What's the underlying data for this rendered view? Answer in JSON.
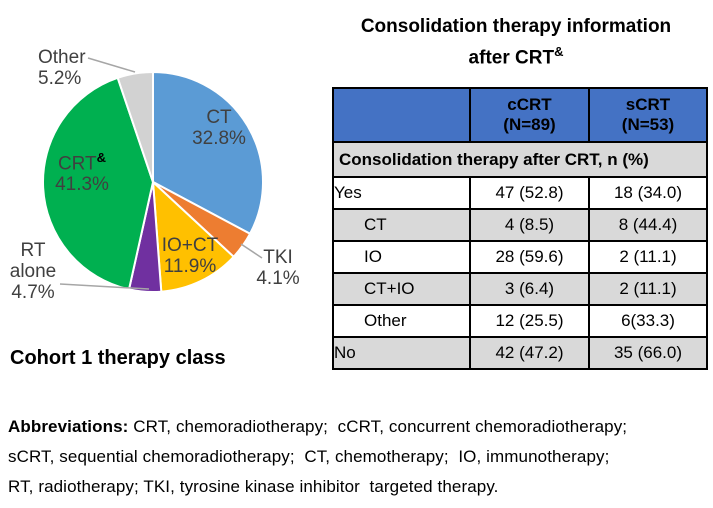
{
  "chart_data": {
    "type": "pie",
    "title": "Cohort 1 therapy class",
    "start_angle_deg": 0,
    "direction": "clockwise",
    "legend_position": "none",
    "label_color": "#404040",
    "segments": [
      {
        "label": "CT",
        "value": 32.8,
        "pct_label": "32.8%",
        "color": "#5B9BD5"
      },
      {
        "label": "TKI",
        "value": 4.1,
        "pct_label": "4.1%",
        "color": "#ED7D31"
      },
      {
        "label": "IO+CT",
        "value": 11.9,
        "pct_label": "11.9%",
        "color": "#FFC000"
      },
      {
        "label": "RT alone",
        "value": 4.7,
        "pct_label": "4.7%",
        "color": "#7030A0"
      },
      {
        "label": "CRT&",
        "base": "CRT",
        "sup": "&",
        "value": 41.3,
        "pct_label": "41.3%",
        "color": "#00B050"
      },
      {
        "label": "Other",
        "value": 5.2,
        "pct_label": "5.2%",
        "color": "#D2D2D2"
      }
    ]
  },
  "pie_panel": {
    "caption": "Cohort 1 therapy class"
  },
  "table": {
    "title_line1": "Consolidation therapy information",
    "title_line2": "after CRT",
    "title_sup": "&",
    "columns": [
      {
        "line1": "cCRT",
        "line2": "(N=89)"
      },
      {
        "line1": "sCRT",
        "line2": "(N=53)"
      }
    ],
    "section_header": "Consolidation therapy after CRT, n (%)",
    "rows": [
      {
        "label": "Yes",
        "ccrt": "47 (52.8)",
        "scrt": "18 (34.0)"
      },
      {
        "label": "CT",
        "ccrt": "4 (8.5)",
        "scrt": "8 (44.4)"
      },
      {
        "label": "IO",
        "ccrt": "28 (59.6)",
        "scrt": "2 (11.1)"
      },
      {
        "label": "CT+IO",
        "ccrt": "3 (6.4)",
        "scrt": "2 (11.1)"
      },
      {
        "label": "Other",
        "ccrt": "12 (25.5)",
        "scrt": "6(33.3)"
      },
      {
        "label": "No",
        "ccrt": "42 (47.2)",
        "scrt": "35 (66.0)"
      }
    ]
  },
  "footnote": {
    "label": "Abbreviations:",
    "text": " CRT, chemoradiotherapy;  cCRT, concurrent chemoradiotherapy;\nsCRT, sequential chemoradiotherapy;  CT, chemotherapy;  IO, immunotherapy;\nRT, radiotherapy; TKI, tyrosine kinase inhibitor  targeted therapy."
  },
  "colors": {
    "table_header_blue": "#4472C4",
    "row_shade_gray": "#D9D9D9",
    "pie_label_gray": "#404040",
    "leader_line_gray": "#A6A6A6",
    "text_black": "#000000"
  }
}
